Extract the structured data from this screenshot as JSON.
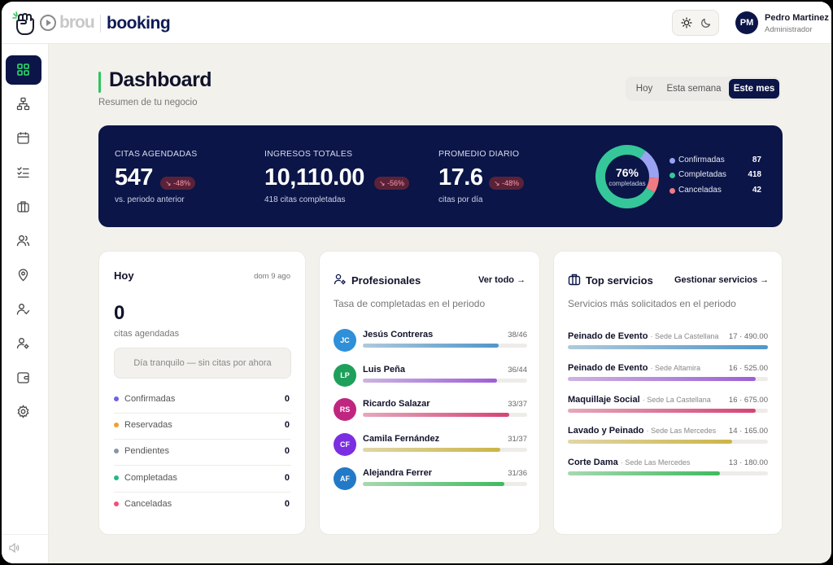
{
  "brand": {
    "prefix": "brou",
    "name": "booking"
  },
  "user": {
    "initials": "PM",
    "name": "Pedro Martinez",
    "role": "Administrador"
  },
  "theme": {
    "light_icon": "sun-icon",
    "dark_icon": "moon-icon"
  },
  "sidebar": {
    "items": [
      {
        "icon": "grid-icon",
        "active": true
      },
      {
        "icon": "org-chart-icon"
      },
      {
        "icon": "calendar-icon"
      },
      {
        "icon": "checklist-icon"
      },
      {
        "icon": "briefcase-icon"
      },
      {
        "icon": "users-icon"
      },
      {
        "icon": "location-pin-icon"
      },
      {
        "icon": "user-check-icon"
      },
      {
        "icon": "user-settings-icon"
      },
      {
        "icon": "wallet-icon"
      },
      {
        "icon": "gear-icon"
      }
    ],
    "footer_icon": "speaker-icon"
  },
  "header": {
    "title": "Dashboard",
    "subtitle": "Resumen de tu negocio"
  },
  "range": {
    "options": [
      "Hoy",
      "Esta semana",
      "Este mes"
    ],
    "selected": "Este mes"
  },
  "kpis": [
    {
      "label": "CITAS AGENDADAS",
      "value": "547",
      "change": "↘ -48%",
      "sub": "vs. periodo anterior"
    },
    {
      "label": "INGRESOS TOTALES",
      "value": "10,110.00",
      "change": "↘ -56%",
      "sub": "418 citas completadas"
    },
    {
      "label": "PROMEDIO DIARIO",
      "value": "17.6",
      "change": "↘ -48%",
      "sub": "citas por día"
    }
  ],
  "summary": {
    "percent": "76%",
    "caption": "completadas",
    "legend": [
      {
        "label": "Confirmadas",
        "value": "87",
        "count": 87,
        "color": "#9aa3f2"
      },
      {
        "label": "Completadas",
        "value": "418",
        "count": 418,
        "color": "#35c799"
      },
      {
        "label": "Canceladas",
        "value": "42",
        "count": 42,
        "color": "#f07a84"
      }
    ]
  },
  "today": {
    "title": "Hoy",
    "date": "dom 9 ago",
    "count": "0",
    "caption": "citas agendadas",
    "empty_message": "Día tranquilo — sin citas por ahora",
    "statuses": [
      {
        "label": "Confirmadas",
        "value": "0",
        "color": "#6c63e0"
      },
      {
        "label": "Reservadas",
        "value": "0",
        "color": "#f0a030"
      },
      {
        "label": "Pendientes",
        "value": "0",
        "color": "#8a94a6"
      },
      {
        "label": "Completadas",
        "value": "0",
        "color": "#22b889"
      },
      {
        "label": "Canceladas",
        "value": "0",
        "color": "#ef4f7a"
      }
    ]
  },
  "professionals": {
    "title": "Profesionales",
    "link": "Ver todo",
    "subtitle": "Tasa de completadas en el periodo",
    "items": [
      {
        "initials": "JC",
        "name": "Jesús Contreras",
        "ratio": "38/46",
        "avatar_color": "#2f8fd8",
        "bar_color": "#4f97c9"
      },
      {
        "initials": "LP",
        "name": "Luis Peña",
        "ratio": "36/44",
        "avatar_color": "#1fa05a",
        "bar_color": "#9c5fd6"
      },
      {
        "initials": "RS",
        "name": "Ricardo Salazar",
        "ratio": "33/37",
        "avatar_color": "#c0267f",
        "bar_color": "#d54475"
      },
      {
        "initials": "CF",
        "name": "Camila Fernández",
        "ratio": "31/37",
        "avatar_color": "#7b2fe0",
        "bar_color": "#cbb548"
      },
      {
        "initials": "AF",
        "name": "Alejandra Ferrer",
        "ratio": "31/36",
        "avatar_color": "#2279c8",
        "bar_color": "#3ebb5e"
      }
    ]
  },
  "services": {
    "title": "Top servicios",
    "link": "Gestionar servicios",
    "subtitle": "Servicios más solicitados en el periodo",
    "items": [
      {
        "name": "Peinado de Evento",
        "location": "· Sede La Castellana",
        "meta": "17 · 490.00",
        "share": 1.0,
        "color": "#4f97c9"
      },
      {
        "name": "Peinado de Evento",
        "location": "· Sede Altamira",
        "meta": "16 · 525.00",
        "share": 0.94,
        "color": "#9c5fd6"
      },
      {
        "name": "Maquillaje Social",
        "location": "· Sede La Castellana",
        "meta": "16 · 675.00",
        "share": 0.94,
        "color": "#d54475"
      },
      {
        "name": "Lavado y Peinado",
        "location": "· Sede Las Mercedes",
        "meta": "14 · 165.00",
        "share": 0.82,
        "color": "#cbb548"
      },
      {
        "name": "Corte Dama",
        "location": "· Sede Las Mercedes",
        "meta": "13 · 180.00",
        "share": 0.76,
        "color": "#3ebb5e"
      }
    ]
  }
}
